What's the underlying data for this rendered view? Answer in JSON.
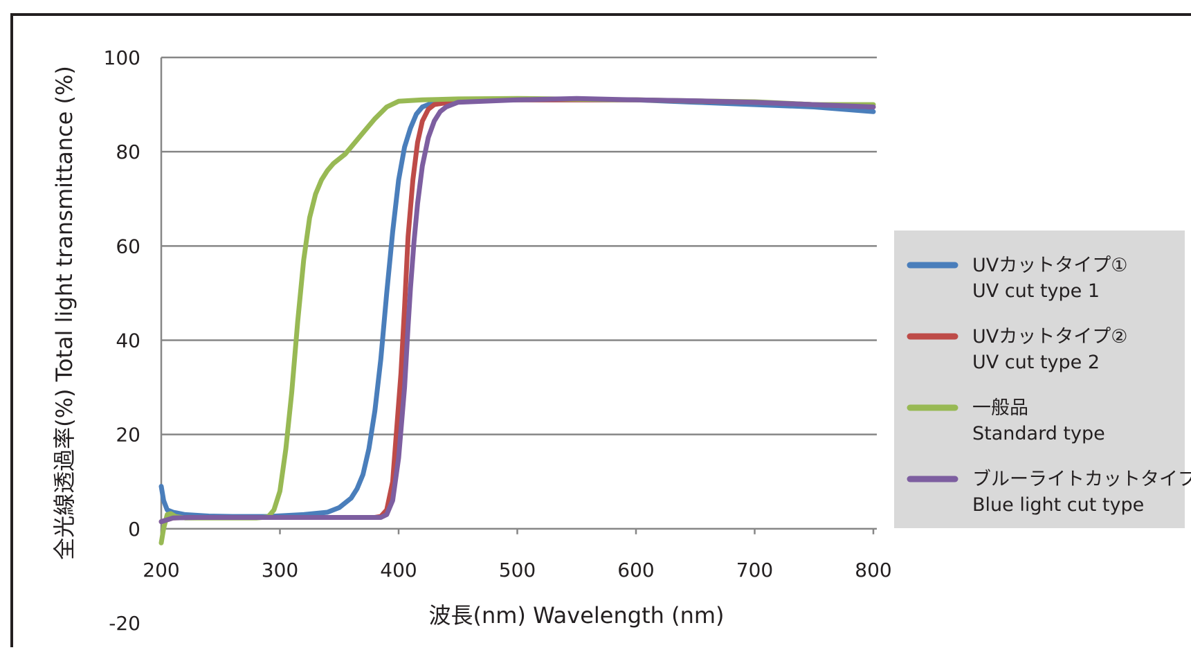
{
  "chart_data": {
    "type": "line",
    "ylabel": "全光線透過率(%)   Total light transmittance (%)",
    "xlabel": "波長(nm)   Wavelength (nm)",
    "xlim": [
      200,
      800
    ],
    "ylim": [
      -20,
      100
    ],
    "x_ticks": [
      "200",
      "300",
      "400",
      "500",
      "600",
      "700",
      "800"
    ],
    "y_ticks": [
      "-20",
      "0",
      "20",
      "40",
      "60",
      "80",
      "100"
    ],
    "grid": true,
    "legend_position": "right",
    "series": [
      {
        "name": "UVカットタイプ①",
        "name_en": "UV cut type 1",
        "color": "#4a7ebb",
        "points": [
          [
            200,
            9
          ],
          [
            202,
            6
          ],
          [
            205,
            4
          ],
          [
            210,
            3.5
          ],
          [
            220,
            3
          ],
          [
            240,
            2.7
          ],
          [
            260,
            2.6
          ],
          [
            290,
            2.6
          ],
          [
            320,
            3
          ],
          [
            340,
            3.5
          ],
          [
            350,
            4.5
          ],
          [
            360,
            6.5
          ],
          [
            365,
            8.5
          ],
          [
            370,
            11.5
          ],
          [
            375,
            17
          ],
          [
            380,
            25
          ],
          [
            385,
            36
          ],
          [
            390,
            50
          ],
          [
            395,
            63
          ],
          [
            400,
            74
          ],
          [
            405,
            81
          ],
          [
            410,
            85
          ],
          [
            415,
            88
          ],
          [
            420,
            89.5
          ],
          [
            430,
            90.5
          ],
          [
            450,
            91
          ],
          [
            500,
            91
          ],
          [
            600,
            91
          ],
          [
            650,
            90.5
          ],
          [
            700,
            90
          ],
          [
            750,
            89.5
          ],
          [
            800,
            88.5
          ]
        ]
      },
      {
        "name": "UVカットタイプ②",
        "name_en": "UV cut type 2",
        "color": "#be4b48",
        "points": [
          [
            200,
            1.5
          ],
          [
            210,
            2.3
          ],
          [
            230,
            2.4
          ],
          [
            300,
            2.4
          ],
          [
            380,
            2.4
          ],
          [
            385,
            2.6
          ],
          [
            390,
            4
          ],
          [
            395,
            10
          ],
          [
            398,
            20
          ],
          [
            402,
            33
          ],
          [
            405,
            47
          ],
          [
            408,
            62
          ],
          [
            412,
            74
          ],
          [
            416,
            82
          ],
          [
            420,
            86.5
          ],
          [
            425,
            89
          ],
          [
            430,
            90
          ],
          [
            450,
            90.8
          ],
          [
            500,
            91
          ],
          [
            600,
            91
          ],
          [
            700,
            90.5
          ],
          [
            750,
            90
          ],
          [
            800,
            89.5
          ]
        ]
      },
      {
        "name": "一般品",
        "name_en": "Standard type",
        "color": "#98b954",
        "points": [
          [
            200,
            -3
          ],
          [
            202,
            0
          ],
          [
            205,
            3
          ],
          [
            208,
            3.2
          ],
          [
            212,
            2.6
          ],
          [
            220,
            2.3
          ],
          [
            250,
            2.3
          ],
          [
            280,
            2.3
          ],
          [
            290,
            2.5
          ],
          [
            295,
            4
          ],
          [
            300,
            8
          ],
          [
            305,
            17
          ],
          [
            310,
            29
          ],
          [
            315,
            44
          ],
          [
            320,
            57
          ],
          [
            325,
            66
          ],
          [
            330,
            71
          ],
          [
            335,
            74
          ],
          [
            340,
            76
          ],
          [
            345,
            77.5
          ],
          [
            350,
            78.5
          ],
          [
            355,
            79.5
          ],
          [
            360,
            81
          ],
          [
            370,
            84
          ],
          [
            380,
            87
          ],
          [
            390,
            89.5
          ],
          [
            400,
            90.7
          ],
          [
            420,
            91
          ],
          [
            450,
            91.2
          ],
          [
            500,
            91.3
          ],
          [
            600,
            91
          ],
          [
            700,
            90.6
          ],
          [
            750,
            90
          ],
          [
            800,
            90
          ]
        ]
      },
      {
        "name": "ブルーライトカットタイプ",
        "name_en": "Blue light cut type",
        "color": "#7d5ea0",
        "points": [
          [
            200,
            1.5
          ],
          [
            210,
            2.3
          ],
          [
            230,
            2.4
          ],
          [
            300,
            2.4
          ],
          [
            385,
            2.4
          ],
          [
            390,
            3
          ],
          [
            395,
            6
          ],
          [
            400,
            15
          ],
          [
            405,
            30
          ],
          [
            408,
            43
          ],
          [
            410,
            51
          ],
          [
            413,
            61
          ],
          [
            416,
            69
          ],
          [
            420,
            77
          ],
          [
            425,
            83
          ],
          [
            430,
            86.5
          ],
          [
            435,
            88.5
          ],
          [
            440,
            89.5
          ],
          [
            450,
            90.5
          ],
          [
            500,
            91
          ],
          [
            550,
            91.3
          ],
          [
            600,
            91
          ],
          [
            650,
            90.8
          ],
          [
            700,
            90.5
          ],
          [
            750,
            90
          ],
          [
            800,
            89.5
          ]
        ]
      }
    ]
  }
}
